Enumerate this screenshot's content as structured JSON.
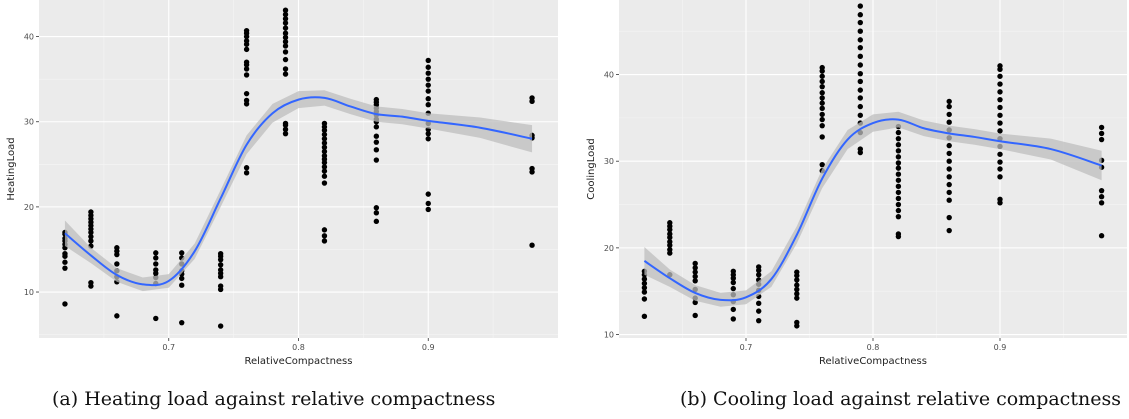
{
  "chart_data": [
    {
      "type": "scatter",
      "xlabel": "RelativeCompactness",
      "ylabel": "HeatingLoad",
      "xlim": [
        0.6,
        1.0
      ],
      "ylim": [
        4.6,
        44.3
      ],
      "xticks": [
        0.7,
        0.8,
        0.9
      ],
      "yticks": [
        10,
        20,
        30,
        40
      ],
      "grid": true,
      "smooth_line_color": "#3366ff",
      "band_color": "#bdbdbd",
      "panel_color": "#ebebeb",
      "points": [
        {
          "x": 0.62,
          "y": [
            8.6,
            12.8,
            13.5,
            14.2,
            14.5,
            15.2,
            15.6,
            16.0,
            16.3,
            16.8,
            17.0
          ]
        },
        {
          "x": 0.64,
          "y": [
            10.7,
            11.1,
            15.4,
            16.0,
            16.5,
            17.0,
            17.4,
            17.8,
            18.2,
            18.6,
            19.0,
            19.4
          ]
        },
        {
          "x": 0.66,
          "y": [
            7.2,
            11.2,
            11.8,
            12.5,
            13.3,
            14.4,
            14.8,
            15.2
          ]
        },
        {
          "x": 0.69,
          "y": [
            6.9,
            11.0,
            11.7,
            12.2,
            12.6,
            13.3,
            14.0,
            14.6
          ]
        },
        {
          "x": 0.71,
          "y": [
            6.4,
            10.8,
            11.6,
            12.1,
            12.5,
            13.3,
            14.0,
            14.6
          ]
        },
        {
          "x": 0.74,
          "y": [
            6.0,
            10.3,
            10.7,
            11.8,
            12.2,
            12.6,
            13.2,
            13.8,
            14.2,
            14.5
          ]
        },
        {
          "x": 0.76,
          "y": [
            24.0,
            24.6,
            32.1,
            32.5,
            33.3,
            35.5,
            36.2,
            36.7,
            37.0,
            38.5,
            39.1,
            39.5,
            40.0,
            40.4,
            40.7
          ]
        },
        {
          "x": 0.79,
          "y": [
            28.6,
            29.1,
            29.6,
            29.8,
            35.6,
            36.2,
            37.3,
            38.2,
            38.9,
            39.4,
            39.9,
            40.4,
            41.0,
            41.6,
            42.1,
            42.6,
            43.1
          ]
        },
        {
          "x": 0.82,
          "y": [
            16.0,
            16.6,
            17.3,
            22.8,
            23.6,
            24.2,
            24.7,
            25.2,
            25.6,
            26.0,
            26.5,
            27.0,
            27.5,
            28.0,
            28.5,
            29.0,
            29.4,
            29.8
          ]
        },
        {
          "x": 0.86,
          "y": [
            18.3,
            19.3,
            19.9,
            25.5,
            26.7,
            27.6,
            28.3,
            29.4,
            30.0,
            30.3,
            30.8,
            31.2,
            31.6,
            32.0,
            32.3,
            32.6
          ]
        },
        {
          "x": 0.9,
          "y": [
            19.7,
            20.4,
            21.5,
            28.0,
            28.6,
            29.1,
            29.8,
            31.0,
            32.0,
            32.7,
            33.6,
            34.3,
            35.0,
            35.7,
            36.4,
            37.2
          ]
        },
        {
          "x": 0.98,
          "y": [
            15.5,
            24.1,
            24.5,
            28.1,
            28.4,
            32.4,
            32.8
          ]
        }
      ],
      "smooth": [
        [
          0.62,
          16.9
        ],
        [
          0.64,
          14.3
        ],
        [
          0.66,
          12.0
        ],
        [
          0.68,
          10.9
        ],
        [
          0.7,
          11.3
        ],
        [
          0.72,
          14.8
        ],
        [
          0.74,
          21.0
        ],
        [
          0.76,
          27.3
        ],
        [
          0.78,
          31.0
        ],
        [
          0.8,
          32.6
        ],
        [
          0.82,
          32.8
        ],
        [
          0.84,
          31.8
        ],
        [
          0.86,
          30.9
        ],
        [
          0.88,
          30.6
        ],
        [
          0.9,
          30.1
        ],
        [
          0.94,
          29.3
        ],
        [
          0.98,
          28.0
        ]
      ],
      "band_halfwidth": [
        1.5,
        0.9,
        0.8,
        0.8,
        0.8,
        0.9,
        1.0,
        1.1,
        1.1,
        1.0,
        0.9,
        0.9,
        0.9,
        0.9,
        0.9,
        1.2,
        1.6
      ]
    },
    {
      "type": "scatter",
      "xlabel": "RelativeCompactness",
      "ylabel": "CoolingLoad",
      "xlim": [
        0.6,
        1.0
      ],
      "ylim": [
        9.6,
        48.6
      ],
      "xticks": [
        0.7,
        0.8,
        0.9
      ],
      "yticks": [
        10,
        20,
        30,
        40
      ],
      "grid": true,
      "smooth_line_color": "#3366ff",
      "band_color": "#bdbdbd",
      "panel_color": "#ebebeb",
      "points": [
        {
          "x": 0.62,
          "y": [
            12.1,
            14.1,
            14.9,
            15.4,
            15.9,
            16.4,
            16.9,
            17.3
          ]
        },
        {
          "x": 0.64,
          "y": [
            16.9,
            19.4,
            19.8,
            20.3,
            20.7,
            21.2,
            21.6,
            22.1,
            22.5,
            22.9
          ]
        },
        {
          "x": 0.66,
          "y": [
            12.2,
            13.7,
            14.2,
            15.2,
            16.2,
            16.7,
            17.2,
            17.7,
            18.2
          ]
        },
        {
          "x": 0.69,
          "y": [
            11.8,
            12.9,
            13.8,
            14.6,
            15.3,
            16.0,
            16.5,
            16.9,
            17.3
          ]
        },
        {
          "x": 0.71,
          "y": [
            11.6,
            12.7,
            13.6,
            14.4,
            15.1,
            15.8,
            16.3,
            16.9,
            17.4,
            17.8
          ]
        },
        {
          "x": 0.74,
          "y": [
            11.0,
            11.4,
            14.2,
            14.7,
            15.2,
            15.7,
            16.3,
            16.8,
            17.2
          ]
        },
        {
          "x": 0.76,
          "y": [
            28.9,
            29.6,
            32.8,
            34.1,
            34.8,
            35.4,
            36.1,
            36.7,
            37.3,
            37.9,
            38.6,
            39.2,
            39.8,
            40.4,
            40.8
          ]
        },
        {
          "x": 0.79,
          "y": [
            31.0,
            31.4,
            33.3,
            34.4,
            35.3,
            36.3,
            37.3,
            38.2,
            39.2,
            40.1,
            41.1,
            42.1,
            43.1,
            44.0,
            45.0,
            46.0,
            46.9,
            47.9
          ]
        },
        {
          "x": 0.82,
          "y": [
            21.3,
            21.6,
            23.6,
            24.3,
            25.0,
            25.7,
            26.4,
            27.1,
            27.8,
            28.5,
            29.2,
            29.8,
            30.5,
            31.2,
            31.9,
            32.6,
            33.3,
            34.0
          ]
        },
        {
          "x": 0.86,
          "y": [
            22.0,
            23.5,
            25.5,
            26.4,
            27.3,
            28.2,
            29.1,
            30.0,
            30.9,
            31.8,
            32.7,
            33.6,
            34.5,
            35.4,
            36.3,
            36.9
          ]
        },
        {
          "x": 0.9,
          "y": [
            25.2,
            25.6,
            28.2,
            29.1,
            29.9,
            30.8,
            31.7,
            32.6,
            33.5,
            34.4,
            35.3,
            36.2,
            37.1,
            38.0,
            38.9,
            39.8,
            40.6,
            41.0
          ]
        },
        {
          "x": 0.98,
          "y": [
            21.4,
            25.2,
            25.9,
            26.6,
            29.3,
            30.1,
            32.5,
            33.2,
            33.9
          ]
        }
      ],
      "smooth": [
        [
          0.62,
          18.5
        ],
        [
          0.64,
          16.5
        ],
        [
          0.66,
          14.8
        ],
        [
          0.68,
          14.0
        ],
        [
          0.7,
          14.3
        ],
        [
          0.72,
          16.4
        ],
        [
          0.74,
          21.5
        ],
        [
          0.76,
          28.0
        ],
        [
          0.78,
          32.5
        ],
        [
          0.8,
          34.4
        ],
        [
          0.82,
          34.8
        ],
        [
          0.84,
          33.8
        ],
        [
          0.86,
          33.2
        ],
        [
          0.88,
          32.8
        ],
        [
          0.9,
          32.3
        ],
        [
          0.94,
          31.4
        ],
        [
          0.98,
          29.5
        ]
      ],
      "band_halfwidth": [
        1.6,
        1.0,
        0.9,
        0.8,
        0.8,
        0.9,
        1.0,
        1.1,
        1.1,
        1.0,
        0.9,
        0.9,
        0.9,
        0.9,
        0.9,
        1.2,
        1.7
      ]
    }
  ],
  "captions": {
    "a": "(a) Heating load against relative compactness",
    "b": "(b) Cooling load against relative compactness"
  }
}
